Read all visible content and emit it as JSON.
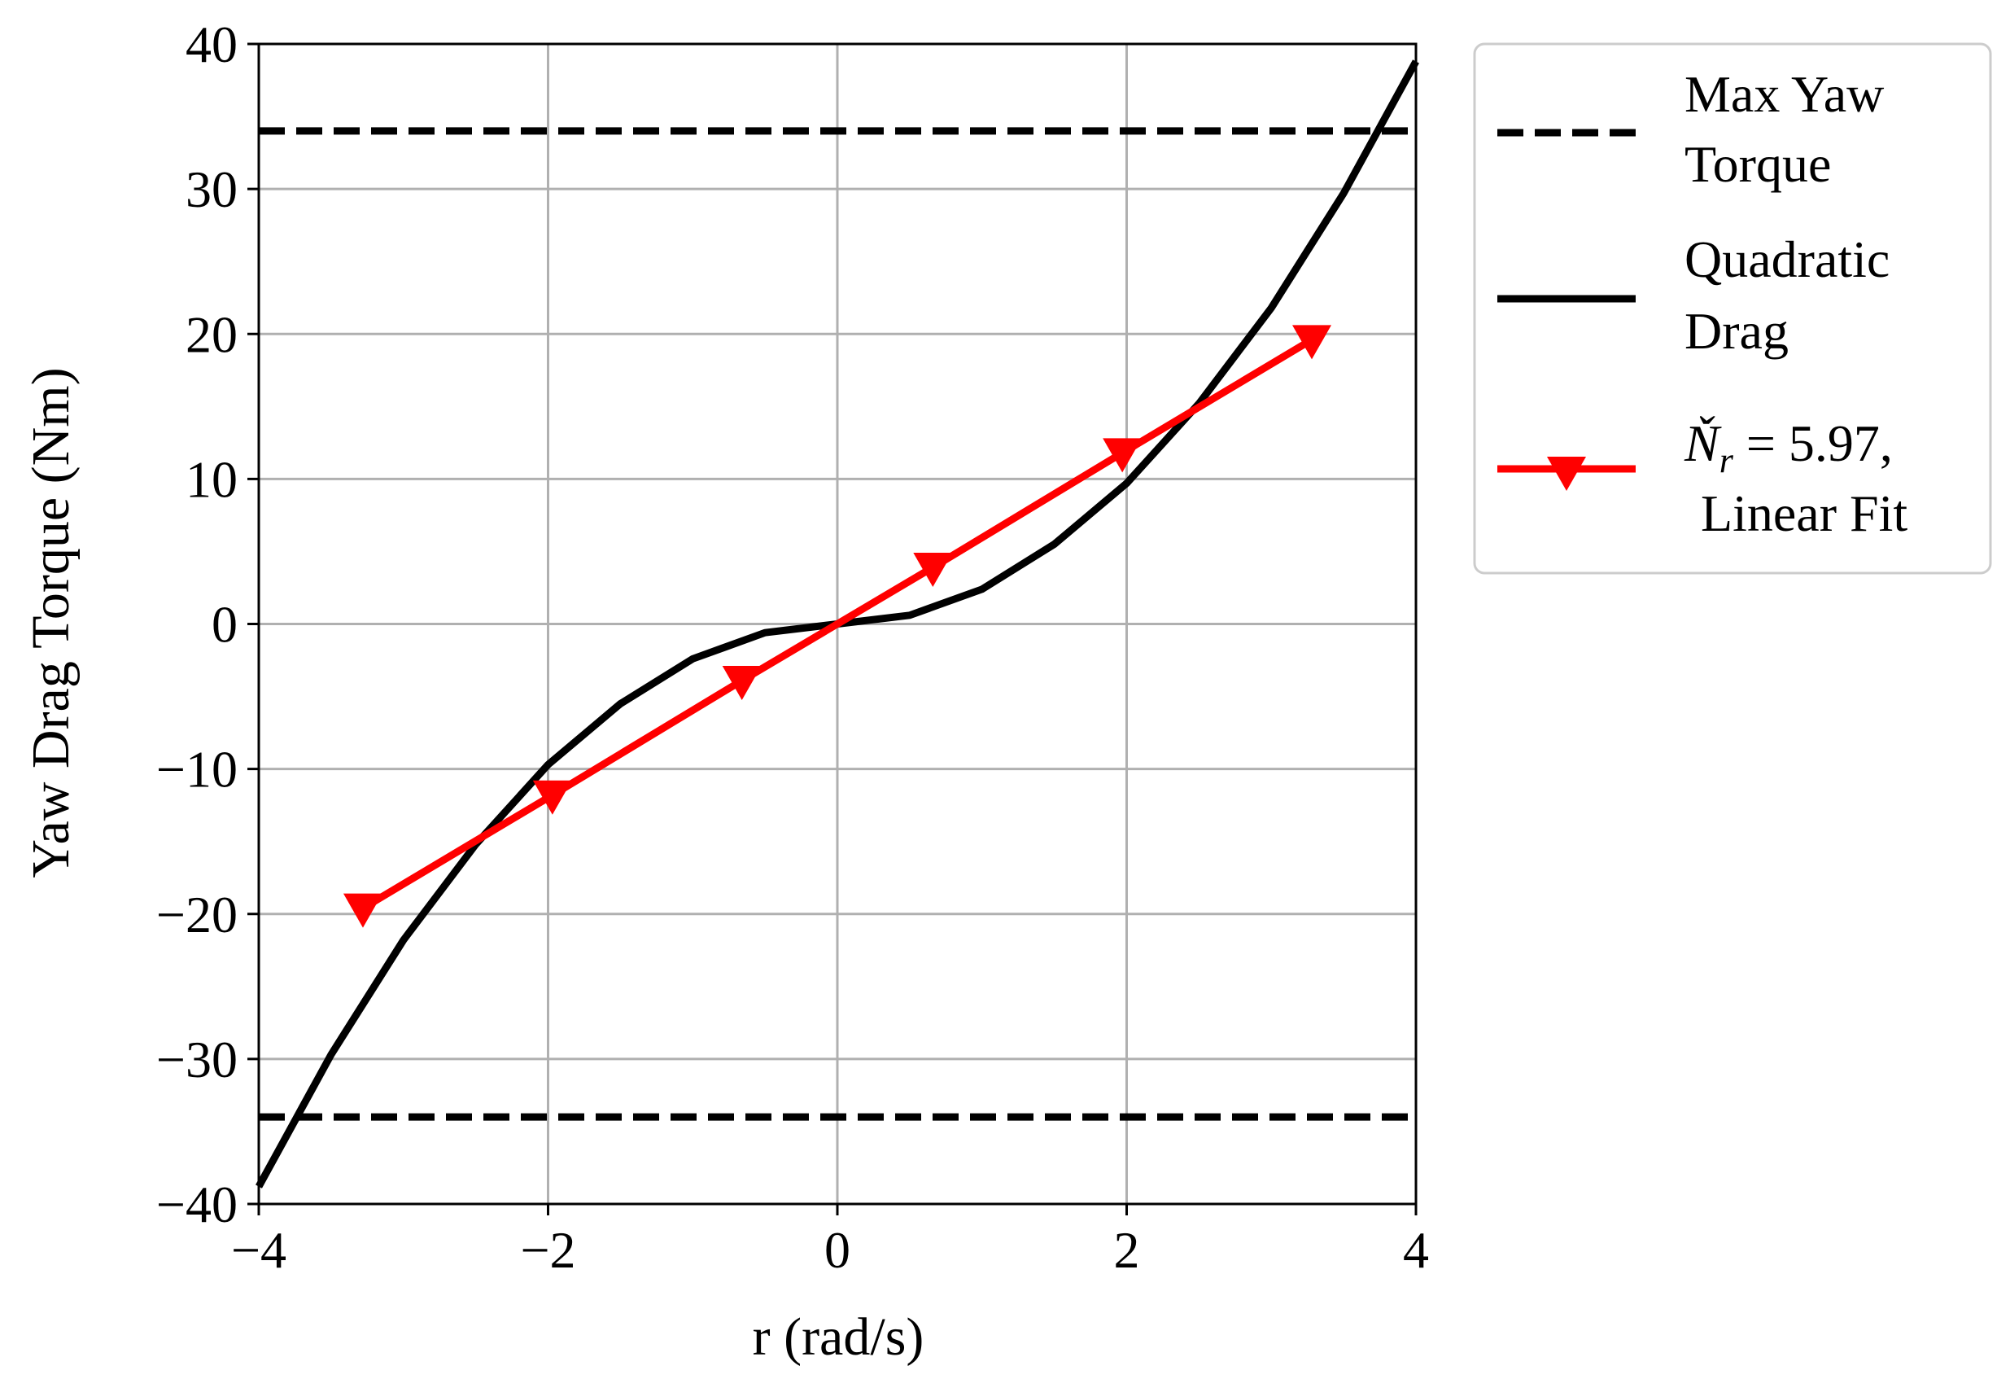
{
  "chart_data": {
    "type": "line",
    "title": "",
    "xlabel": "r (rad/s)",
    "ylabel": "Yaw Drag Torque (Nm)",
    "xlim": [
      -4,
      4
    ],
    "ylim": [
      -40,
      40
    ],
    "xticks": [
      -4,
      -2,
      0,
      2,
      4
    ],
    "xtick_labels": [
      "−4",
      "−2",
      "0",
      "2",
      "4"
    ],
    "yticks": [
      -40,
      -30,
      -20,
      -10,
      0,
      10,
      20,
      30,
      40
    ],
    "ytick_labels": [
      "−40",
      "−30",
      "−20",
      "−10",
      "0",
      "10",
      "20",
      "30",
      "40"
    ],
    "grid": true,
    "legend_position": "outside-upper-right",
    "series": [
      {
        "name": "Max Yaw Torque",
        "legend_lines": [
          "Max Yaw",
          "Torque"
        ],
        "style": "dashed",
        "color": "#000000",
        "levels": [
          34,
          -34
        ]
      },
      {
        "name": "Quadratic Drag",
        "legend_lines": [
          "Quadratic",
          "Drag"
        ],
        "style": "solid",
        "color": "#000000",
        "x": [
          -4,
          -3.5,
          -3,
          -2.5,
          -2,
          -1.5,
          -1,
          -0.5,
          0,
          0.5,
          1,
          1.5,
          2,
          2.5,
          3,
          3.5,
          4
        ],
        "y": [
          -38.8,
          -29.7,
          -21.8,
          -15.2,
          -9.7,
          -5.5,
          -2.4,
          -0.6,
          0,
          0.6,
          2.4,
          5.5,
          9.7,
          15.2,
          21.8,
          29.7,
          38.8
        ]
      },
      {
        "name": "Ňr = 5.97, Linear Fit",
        "legend_symbol": "Ň",
        "legend_subscript": "r",
        "legend_suffix": " = 5.97,",
        "legend_line2": "Linear Fit",
        "style": "solid",
        "marker": "triangle-down",
        "color": "#ff0000",
        "x": [
          -3.28,
          -1.97,
          -0.66,
          0,
          0.66,
          1.97,
          3.28
        ],
        "y": [
          -19.6,
          -11.8,
          -3.9,
          0,
          3.9,
          11.8,
          19.6
        ]
      }
    ]
  }
}
